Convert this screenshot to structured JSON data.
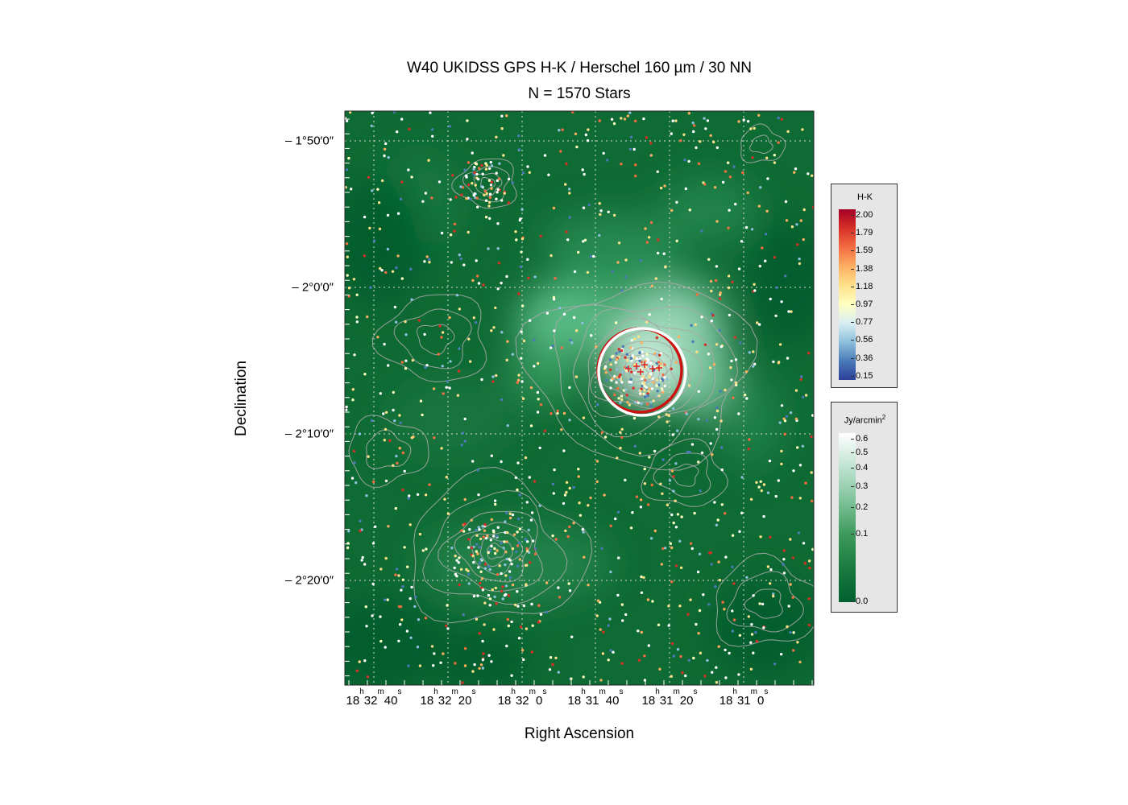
{
  "chart_data": {
    "type": "scatter",
    "title": "W40 UKIDSS GPS H-K / Herschel 160 µm / 30 NN",
    "subtitle": "N = 1570  Stars",
    "xlabel": "Right Ascension",
    "ylabel": "Declination",
    "background": "Herschel 160 µm intensity map (green colormap) with grey density contours",
    "y_ticks": [
      "– 1°50′0″",
      "– 2°0′0″",
      "– 2°10′0″",
      "– 2°20′0″"
    ],
    "x_ticks": [
      {
        "h": "18",
        "m": "32",
        "s": "40"
      },
      {
        "h": "18",
        "m": "32",
        "s": "20"
      },
      {
        "h": "18",
        "m": "32",
        "s": "0"
      },
      {
        "h": "18",
        "m": "31",
        "s": "40"
      },
      {
        "h": "18",
        "m": "31",
        "s": "20"
      },
      {
        "h": "18",
        "m": "31",
        "s": "0"
      }
    ],
    "grid": true,
    "star_count": 1570,
    "highlight_circles": [
      {
        "color": "#cc1111",
        "style": "solid"
      },
      {
        "color": "#ffffff",
        "style": "solid"
      }
    ],
    "colorbars": [
      {
        "title": "H-K",
        "ticks": [
          "2.00",
          "1.79",
          "1.59",
          "1.38",
          "1.18",
          "0.97",
          "0.77",
          "0.56",
          "0.36",
          "0.15"
        ],
        "colors": [
          "#2b3f9a",
          "#4a7ab8",
          "#8dc0dd",
          "#d9eef3",
          "#ffffbf",
          "#fee08b",
          "#fdae61",
          "#f46d43",
          "#d73027",
          "#a50026"
        ],
        "location": "right-top"
      },
      {
        "title": "Jy/arcmin",
        "title_sup": "2",
        "ticks": [
          "0.6",
          "0.5",
          "0.4",
          "0.3",
          "0.2",
          "0.1",
          "0.0"
        ],
        "colors": [
          "#006030",
          "#1a7a3f",
          "#3d9a5b",
          "#7fc29a",
          "#bfe3d2",
          "#ffffff"
        ],
        "location": "right-bottom"
      }
    ]
  }
}
